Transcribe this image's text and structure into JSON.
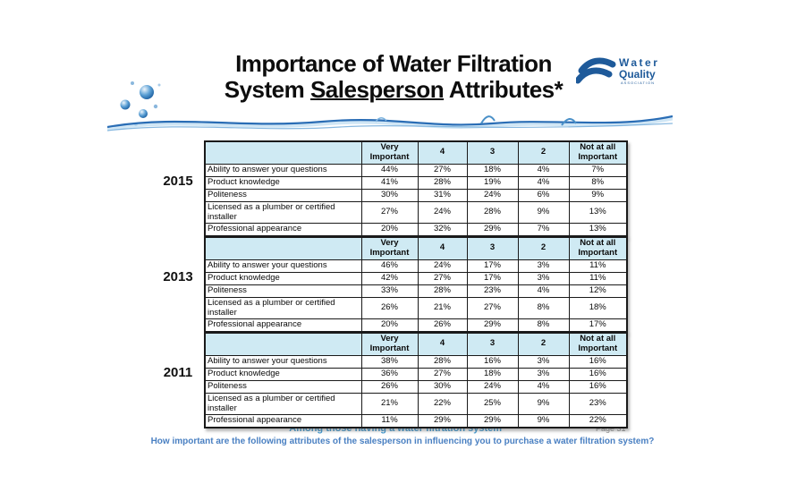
{
  "slide": {
    "title_line1": "Importance of Water Filtration",
    "title_line2_pre": "System ",
    "title_line2_underlined": "Salesperson",
    "title_line2_post": " Attributes*",
    "footnote": "*Among those having a water filtration system",
    "question": "How important are the following attributes of the salesperson in influencing you to purchase a water filtration system?",
    "page_label": "Page 31"
  },
  "logo": {
    "line1": "Water",
    "line2": "Quality",
    "line3": "ASSOCIATION",
    "color": "#1e5a9a"
  },
  "colors": {
    "table_header_bg": "#cfeaf3",
    "footnote_blue": "#3f9ad2",
    "question_blue": "#4a80c2",
    "page_gray": "#8f8f8f",
    "water_blue": "#2a6db5"
  },
  "columns": [
    "Very\nImportant",
    "4",
    "3",
    "2",
    "Not at all\nImportant"
  ],
  "tables": [
    {
      "year": "2015",
      "rows": [
        {
          "label": "Ability to answer your questions",
          "values": [
            "44%",
            "27%",
            "18%",
            "4%",
            "7%"
          ]
        },
        {
          "label": "Product knowledge",
          "values": [
            "41%",
            "28%",
            "19%",
            "4%",
            "8%"
          ]
        },
        {
          "label": "Politeness",
          "values": [
            "30%",
            "31%",
            "24%",
            "6%",
            "9%"
          ]
        },
        {
          "label": "Licensed as a plumber or certified installer",
          "values": [
            "27%",
            "24%",
            "28%",
            "9%",
            "13%"
          ]
        },
        {
          "label": "Professional appearance",
          "values": [
            "20%",
            "32%",
            "29%",
            "7%",
            "13%"
          ]
        }
      ]
    },
    {
      "year": "2013",
      "rows": [
        {
          "label": "Ability to answer your questions",
          "values": [
            "46%",
            "24%",
            "17%",
            "3%",
            "11%"
          ]
        },
        {
          "label": "Product knowledge",
          "values": [
            "42%",
            "27%",
            "17%",
            "3%",
            "11%"
          ]
        },
        {
          "label": "Politeness",
          "values": [
            "33%",
            "28%",
            "23%",
            "4%",
            "12%"
          ]
        },
        {
          "label": "Licensed as a plumber or certified installer",
          "values": [
            "26%",
            "21%",
            "27%",
            "8%",
            "18%"
          ]
        },
        {
          "label": "Professional appearance",
          "values": [
            "20%",
            "26%",
            "29%",
            "8%",
            "17%"
          ]
        }
      ]
    },
    {
      "year": "2011",
      "rows": [
        {
          "label": "Ability to answer your questions",
          "values": [
            "38%",
            "28%",
            "16%",
            "3%",
            "16%"
          ]
        },
        {
          "label": "Product knowledge",
          "values": [
            "36%",
            "27%",
            "18%",
            "3%",
            "16%"
          ]
        },
        {
          "label": "Politeness",
          "values": [
            "26%",
            "30%",
            "24%",
            "4%",
            "16%"
          ]
        },
        {
          "label": "Licensed as a plumber or certified installer",
          "values": [
            "21%",
            "22%",
            "25%",
            "9%",
            "23%"
          ]
        },
        {
          "label": "Professional appearance",
          "values": [
            "11%",
            "29%",
            "29%",
            "9%",
            "22%"
          ]
        }
      ]
    }
  ]
}
